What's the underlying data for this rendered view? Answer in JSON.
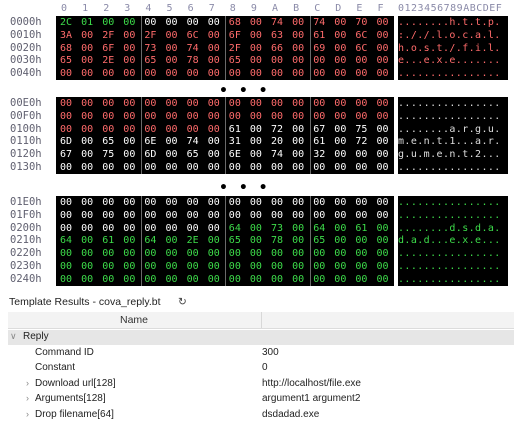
{
  "hex_view": {
    "column_headers": [
      "0",
      "1",
      "2",
      "3",
      "4",
      "5",
      "6",
      "7",
      "8",
      "9",
      "A",
      "B",
      "C",
      "D",
      "E",
      "F"
    ],
    "ascii_header": "0123456789ABCDEF",
    "gap_marker": "• • •",
    "blocks": [
      {
        "rows": [
          {
            "offset": "0000h",
            "bytes": [
              "2C",
              "01",
              "00",
              "00",
              "00",
              "00",
              "00",
              "00",
              "68",
              "00",
              "74",
              "00",
              "74",
              "00",
              "70",
              "00"
            ],
            "colors": [
              "g",
              "g",
              "g",
              "g",
              "w",
              "w",
              "w",
              "w",
              "r",
              "r",
              "r",
              "r",
              "r",
              "r",
              "r",
              "r"
            ],
            "ascii": "........h.t.t.p.",
            "acolor": "r"
          },
          {
            "offset": "0010h",
            "bytes": [
              "3A",
              "00",
              "2F",
              "00",
              "2F",
              "00",
              "6C",
              "00",
              "6F",
              "00",
              "63",
              "00",
              "61",
              "00",
              "6C",
              "00"
            ],
            "colors": [
              "r",
              "r",
              "r",
              "r",
              "r",
              "r",
              "r",
              "r",
              "r",
              "r",
              "r",
              "r",
              "r",
              "r",
              "r",
              "r"
            ],
            "ascii": ":././.l.o.c.a.l.",
            "acolor": "r"
          },
          {
            "offset": "0020h",
            "bytes": [
              "68",
              "00",
              "6F",
              "00",
              "73",
              "00",
              "74",
              "00",
              "2F",
              "00",
              "66",
              "00",
              "69",
              "00",
              "6C",
              "00"
            ],
            "colors": [
              "r",
              "r",
              "r",
              "r",
              "r",
              "r",
              "r",
              "r",
              "r",
              "r",
              "r",
              "r",
              "r",
              "r",
              "r",
              "r"
            ],
            "ascii": "h.o.s.t./.f.i.l.",
            "acolor": "r"
          },
          {
            "offset": "0030h",
            "bytes": [
              "65",
              "00",
              "2E",
              "00",
              "65",
              "00",
              "78",
              "00",
              "65",
              "00",
              "00",
              "00",
              "00",
              "00",
              "00",
              "00"
            ],
            "colors": [
              "r",
              "r",
              "r",
              "r",
              "r",
              "r",
              "r",
              "r",
              "r",
              "r",
              "r",
              "r",
              "r",
              "r",
              "r",
              "r"
            ],
            "ascii": "e...e.x.e.......",
            "acolor": "r"
          },
          {
            "offset": "0040h",
            "bytes": [
              "00",
              "00",
              "00",
              "00",
              "00",
              "00",
              "00",
              "00",
              "00",
              "00",
              "00",
              "00",
              "00",
              "00",
              "00",
              "00"
            ],
            "colors": [
              "r",
              "r",
              "r",
              "r",
              "r",
              "r",
              "r",
              "r",
              "r",
              "r",
              "r",
              "r",
              "r",
              "r",
              "r",
              "r"
            ],
            "ascii": "................",
            "acolor": "r"
          }
        ]
      },
      {
        "rows": [
          {
            "offset": "00E0h",
            "bytes": [
              "00",
              "00",
              "00",
              "00",
              "00",
              "00",
              "00",
              "00",
              "00",
              "00",
              "00",
              "00",
              "00",
              "00",
              "00",
              "00"
            ],
            "colors": [
              "r",
              "r",
              "r",
              "r",
              "r",
              "r",
              "r",
              "r",
              "r",
              "r",
              "r",
              "r",
              "r",
              "r",
              "r",
              "r"
            ],
            "ascii": "................",
            "acolor": "w"
          },
          {
            "offset": "00F0h",
            "bytes": [
              "00",
              "00",
              "00",
              "00",
              "00",
              "00",
              "00",
              "00",
              "00",
              "00",
              "00",
              "00",
              "00",
              "00",
              "00",
              "00"
            ],
            "colors": [
              "r",
              "r",
              "r",
              "r",
              "r",
              "r",
              "r",
              "r",
              "r",
              "r",
              "r",
              "r",
              "r",
              "r",
              "r",
              "r"
            ],
            "ascii": "................",
            "acolor": "w"
          },
          {
            "offset": "0100h",
            "bytes": [
              "00",
              "00",
              "00",
              "00",
              "00",
              "00",
              "00",
              "00",
              "61",
              "00",
              "72",
              "00",
              "67",
              "00",
              "75",
              "00"
            ],
            "colors": [
              "r",
              "r",
              "r",
              "r",
              "r",
              "r",
              "r",
              "r",
              "w",
              "w",
              "w",
              "w",
              "w",
              "w",
              "w",
              "w"
            ],
            "ascii": "........a.r.g.u.",
            "acolor": "w"
          },
          {
            "offset": "0110h",
            "bytes": [
              "6D",
              "00",
              "65",
              "00",
              "6E",
              "00",
              "74",
              "00",
              "31",
              "00",
              "20",
              "00",
              "61",
              "00",
              "72",
              "00"
            ],
            "colors": [
              "w",
              "w",
              "w",
              "w",
              "w",
              "w",
              "w",
              "w",
              "w",
              "w",
              "w",
              "w",
              "w",
              "w",
              "w",
              "w"
            ],
            "ascii": "m.e.n.t.1...a.r.",
            "acolor": "w"
          },
          {
            "offset": "0120h",
            "bytes": [
              "67",
              "00",
              "75",
              "00",
              "6D",
              "00",
              "65",
              "00",
              "6E",
              "00",
              "74",
              "00",
              "32",
              "00",
              "00",
              "00"
            ],
            "colors": [
              "w",
              "w",
              "w",
              "w",
              "w",
              "w",
              "w",
              "w",
              "w",
              "w",
              "w",
              "w",
              "w",
              "w",
              "w",
              "w"
            ],
            "ascii": "g.u.m.e.n.t.2...",
            "acolor": "w"
          },
          {
            "offset": "0130h",
            "bytes": [
              "00",
              "00",
              "00",
              "00",
              "00",
              "00",
              "00",
              "00",
              "00",
              "00",
              "00",
              "00",
              "00",
              "00",
              "00",
              "00"
            ],
            "colors": [
              "w",
              "w",
              "w",
              "w",
              "w",
              "w",
              "w",
              "w",
              "w",
              "w",
              "w",
              "w",
              "w",
              "w",
              "w",
              "w"
            ],
            "ascii": "................",
            "acolor": "w"
          }
        ]
      },
      {
        "rows": [
          {
            "offset": "01E0h",
            "bytes": [
              "00",
              "00",
              "00",
              "00",
              "00",
              "00",
              "00",
              "00",
              "00",
              "00",
              "00",
              "00",
              "00",
              "00",
              "00",
              "00"
            ],
            "colors": [
              "w",
              "w",
              "w",
              "w",
              "w",
              "w",
              "w",
              "w",
              "w",
              "w",
              "w",
              "w",
              "w",
              "w",
              "w",
              "w"
            ],
            "ascii": "................",
            "acolor": "g"
          },
          {
            "offset": "01F0h",
            "bytes": [
              "00",
              "00",
              "00",
              "00",
              "00",
              "00",
              "00",
              "00",
              "00",
              "00",
              "00",
              "00",
              "00",
              "00",
              "00",
              "00"
            ],
            "colors": [
              "w",
              "w",
              "w",
              "w",
              "w",
              "w",
              "w",
              "w",
              "w",
              "w",
              "w",
              "w",
              "w",
              "w",
              "w",
              "w"
            ],
            "ascii": "................",
            "acolor": "g"
          },
          {
            "offset": "0200h",
            "bytes": [
              "00",
              "00",
              "00",
              "00",
              "00",
              "00",
              "00",
              "00",
              "64",
              "00",
              "73",
              "00",
              "64",
              "00",
              "61",
              "00"
            ],
            "colors": [
              "w",
              "w",
              "w",
              "w",
              "w",
              "w",
              "w",
              "w",
              "g",
              "g",
              "g",
              "g",
              "g",
              "g",
              "g",
              "g"
            ],
            "ascii": "........d.s.d.a.",
            "acolor": "g"
          },
          {
            "offset": "0210h",
            "bytes": [
              "64",
              "00",
              "61",
              "00",
              "64",
              "00",
              "2E",
              "00",
              "65",
              "00",
              "78",
              "00",
              "65",
              "00",
              "00",
              "00"
            ],
            "colors": [
              "g",
              "g",
              "g",
              "g",
              "g",
              "g",
              "g",
              "g",
              "g",
              "g",
              "g",
              "g",
              "g",
              "g",
              "g",
              "g"
            ],
            "ascii": "d.a.d...e.x.e...",
            "acolor": "g"
          },
          {
            "offset": "0220h",
            "bytes": [
              "00",
              "00",
              "00",
              "00",
              "00",
              "00",
              "00",
              "00",
              "00",
              "00",
              "00",
              "00",
              "00",
              "00",
              "00",
              "00"
            ],
            "colors": [
              "g",
              "g",
              "g",
              "g",
              "g",
              "g",
              "g",
              "g",
              "g",
              "g",
              "g",
              "g",
              "g",
              "g",
              "g",
              "g"
            ],
            "ascii": "................",
            "acolor": "g"
          },
          {
            "offset": "0230h",
            "bytes": [
              "00",
              "00",
              "00",
              "00",
              "00",
              "00",
              "00",
              "00",
              "00",
              "00",
              "00",
              "00",
              "00",
              "00",
              "00",
              "00"
            ],
            "colors": [
              "g",
              "g",
              "g",
              "g",
              "g",
              "g",
              "g",
              "g",
              "g",
              "g",
              "g",
              "g",
              "g",
              "g",
              "g",
              "g"
            ],
            "ascii": "................",
            "acolor": "g"
          },
          {
            "offset": "0240h",
            "bytes": [
              "00",
              "00",
              "00",
              "00",
              "00",
              "00",
              "00",
              "00",
              "00",
              "00",
              "00",
              "00",
              "00",
              "00",
              "00",
              "00"
            ],
            "colors": [
              "g",
              "g",
              "g",
              "g",
              "g",
              "g",
              "g",
              "g",
              "g",
              "g",
              "g",
              "g",
              "g",
              "g",
              "g",
              "g"
            ],
            "ascii": "................",
            "acolor": "g"
          }
        ]
      }
    ],
    "colors": {
      "w": "#ffffff",
      "r": "#ff6b6b",
      "g": "#3ddc4a"
    }
  },
  "template_panel": {
    "title": "Template Results - cova_reply.bt",
    "refresh_icon": "refresh-icon",
    "column_name": "Name",
    "column_value": "",
    "rows": [
      {
        "name": "Reply",
        "value": "",
        "expander": "∨",
        "group": true
      },
      {
        "name": "Command ID",
        "value": "300",
        "expander": ""
      },
      {
        "name": "Constant",
        "value": "0",
        "expander": ""
      },
      {
        "name": "Download url[128]",
        "value": "http://localhost/file.exe",
        "expander": "›"
      },
      {
        "name": "Arguments[128]",
        "value": "argument1 argument2",
        "expander": "›"
      },
      {
        "name": "Drop filename[64]",
        "value": "dsdadad.exe",
        "expander": "›"
      }
    ]
  }
}
